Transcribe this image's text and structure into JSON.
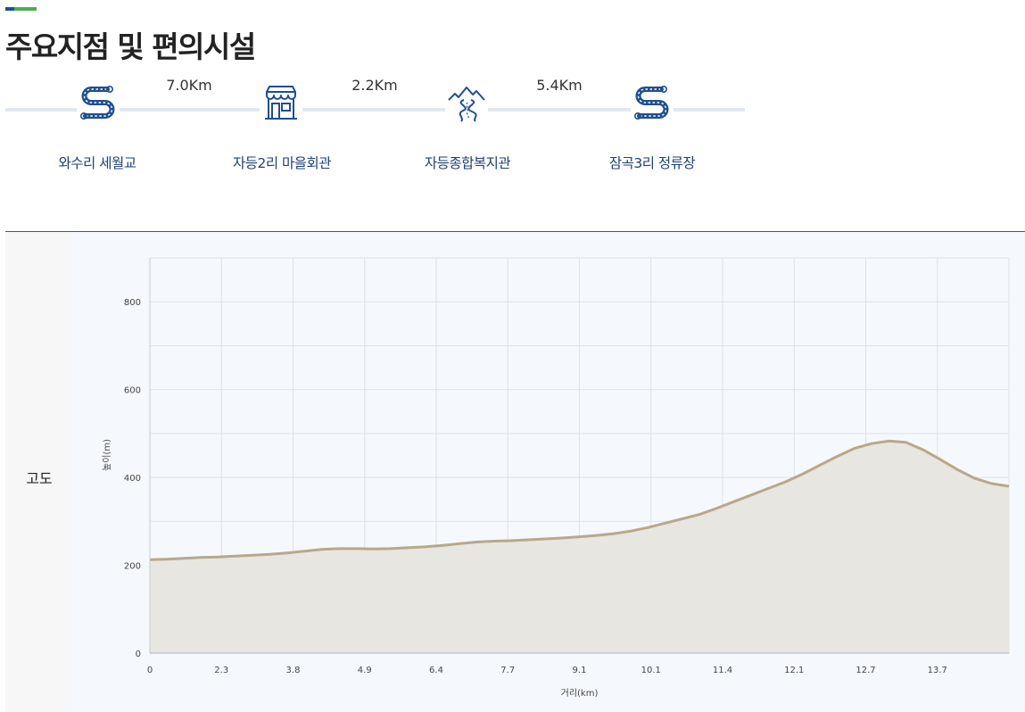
{
  "header": {
    "title": "주요지점 및 편의시설"
  },
  "colors": {
    "accent_blue": "#1d4e9b",
    "accent_green": "#4caf50",
    "icon": "#1f4f8f",
    "line": "#b8a88a",
    "fill": "#e8e6e1"
  },
  "route": {
    "stops": [
      {
        "label": "와수리 세월교",
        "icon": "winding-road-icon"
      },
      {
        "label": "자등2리 마을회관",
        "icon": "store-icon"
      },
      {
        "label": "자등종합복지관",
        "icon": "mountain-road-icon"
      },
      {
        "label": "잠곡3리 정류장",
        "icon": "winding-road-icon"
      }
    ],
    "segments": [
      {
        "distance": "7.0Km"
      },
      {
        "distance": "2.2Km"
      },
      {
        "distance": "5.4Km"
      }
    ]
  },
  "row_label": "고도",
  "chart_data": {
    "type": "area",
    "title": "",
    "xlabel": "거리(km)",
    "ylabel": "높이(m)",
    "ylim": [
      0,
      900
    ],
    "yticks": [
      0,
      200,
      400,
      600,
      800
    ],
    "xtick_labels": [
      "0",
      "2.3",
      "3.8",
      "4.9",
      "6.4",
      "7.7",
      "9.1",
      "10.1",
      "11.4",
      "12.1",
      "12.7",
      "13.7"
    ],
    "grid": true,
    "series": [
      {
        "values": [
          213,
          214,
          216,
          218,
          219,
          221,
          223,
          225,
          228,
          232,
          236,
          238,
          238,
          237,
          238,
          240,
          242,
          245,
          249,
          253,
          255,
          256,
          258,
          260,
          262,
          265,
          268,
          272,
          278,
          286,
          296,
          306,
          316,
          330,
          345,
          360,
          375,
          390,
          408,
          428,
          448,
          466,
          477,
          483,
          480,
          463,
          441,
          418,
          398,
          386,
          380
        ]
      }
    ]
  }
}
